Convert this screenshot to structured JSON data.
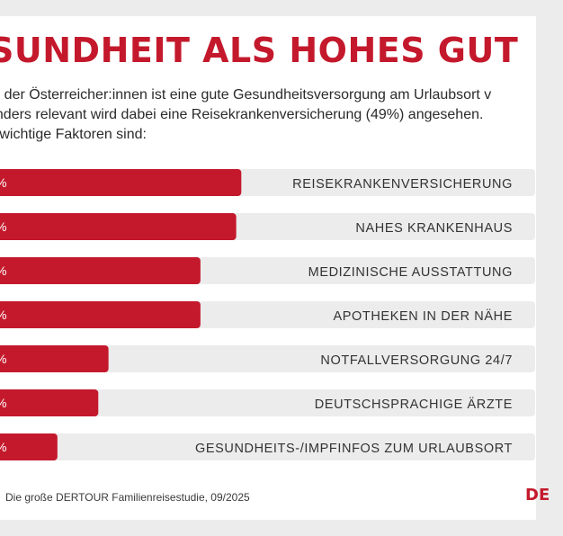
{
  "title": "SUNDHEIT ALS HOHES GUT",
  "intro": [
    "% der Österreicher:innen ist eine gute Gesundheitsversorgung am Urlaubsort v",
    "onders relevant wird dabei eine Reisekrankenversicherung (49%) angesehen.",
    "e wichtige Faktoren sind:"
  ],
  "source": "Die große DERTOUR Familienreisestudie, 09/2025",
  "logo_text": "DE",
  "colors": {
    "accent": "#c4192c",
    "track": "#ececec"
  },
  "chart_data": {
    "type": "bar",
    "orientation": "horizontal",
    "categories": [
      "REISEKRANKENVERSICHERUNG",
      "NAHES KRANKENHAUS",
      "MEDIZINISCHE AUSSTATTUNG",
      "APOTHEKEN IN DER NÄHE",
      "NOTFALLVERSORGUNG 24/7",
      "DEUTSCHSPRACHIGE ÄRZTE",
      "GESUNDHEITS-/IMPFINFOS ZUM URLAUBSORT"
    ],
    "values": [
      49,
      48,
      41,
      41,
      23,
      21,
      13
    ],
    "unit": "%",
    "value_labels": [
      "%",
      "%",
      "%",
      "%",
      "%",
      "%",
      "%"
    ],
    "xlim": [
      0,
      100
    ],
    "grid": false
  }
}
